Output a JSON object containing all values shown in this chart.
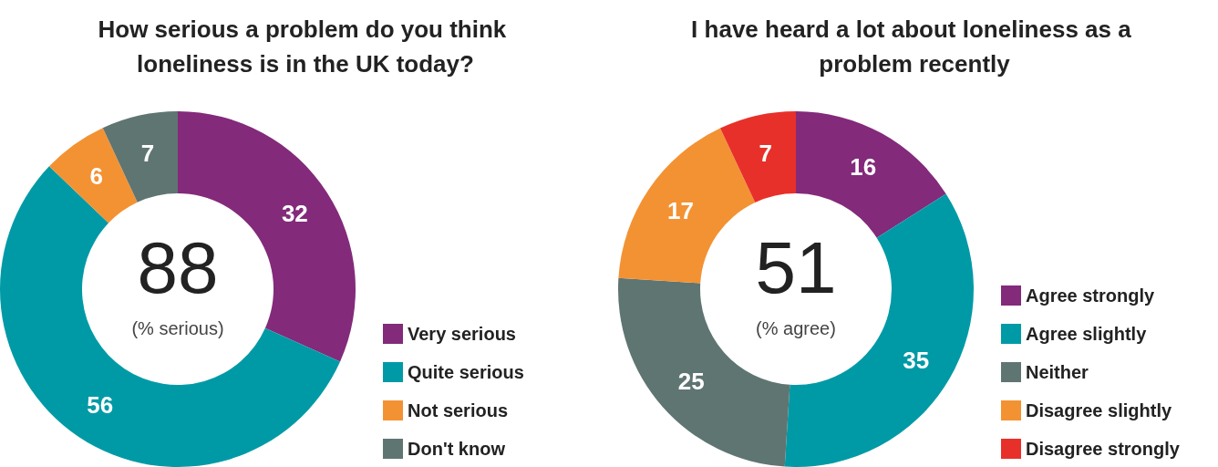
{
  "chart_data": [
    {
      "type": "donut",
      "title": "How serious a problem do you think loneliness is in the UK today?",
      "categories": [
        "Very serious",
        "Quite serious",
        "Not serious",
        "Don't know"
      ],
      "values": [
        32,
        56,
        6,
        7
      ],
      "colors": [
        "#832a7a",
        "#009aa6",
        "#f39233",
        "#5f7572"
      ],
      "data_labels": true,
      "legend": "bottom right",
      "annotations": [
        "88",
        "(% serious)"
      ]
    },
    {
      "type": "donut",
      "title": "I have heard a lot about loneliness as a problem recently",
      "categories": [
        "Agree strongly",
        "Agree slightly",
        "Neither",
        "Disagree slightly",
        "Disagree strongly"
      ],
      "values": [
        16,
        35,
        25,
        17,
        7
      ],
      "colors": [
        "#832a7a",
        "#009aa6",
        "#5f7572",
        "#f39233",
        "#e8302a"
      ],
      "data_labels": true,
      "legend": "bottom right",
      "annotations": [
        "51",
        "(% agree)"
      ]
    }
  ]
}
